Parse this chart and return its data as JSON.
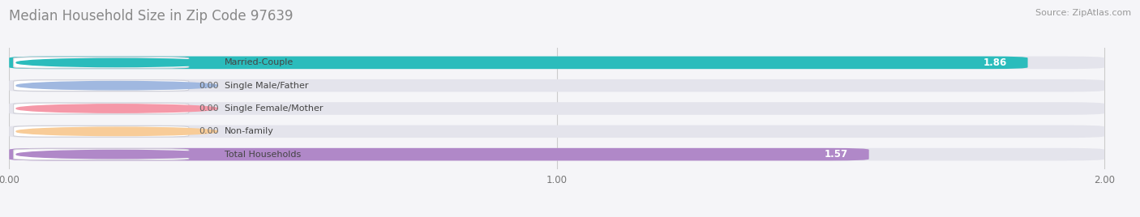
{
  "title": "Median Household Size in Zip Code 97639",
  "source": "Source: ZipAtlas.com",
  "categories": [
    "Married-Couple",
    "Single Male/Father",
    "Single Female/Mother",
    "Non-family",
    "Total Households"
  ],
  "values": [
    1.86,
    0.0,
    0.0,
    0.0,
    1.57
  ],
  "bar_colors": [
    "#2bbcbc",
    "#a0b8e0",
    "#f598a8",
    "#f8cc98",
    "#b088c8"
  ],
  "background_color": "#f5f5f8",
  "bar_bg_color": "#e4e4ec",
  "xlim_max": 2.0,
  "xticks": [
    0.0,
    1.0,
    2.0
  ],
  "xtick_labels": [
    "0.00",
    "1.00",
    "2.00"
  ],
  "title_fontsize": 12,
  "bar_height": 0.55,
  "bar_gap": 1.0
}
